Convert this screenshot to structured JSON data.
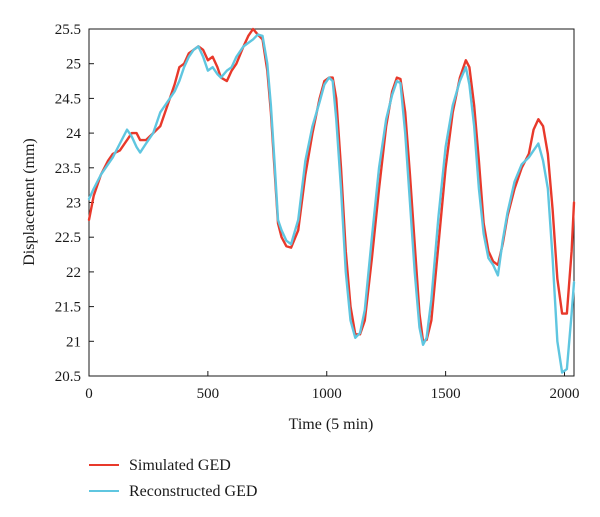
{
  "chart_data": {
    "type": "line",
    "xlabel": "Time (5 min)",
    "ylabel": "Displacement (mm)",
    "xlim": [
      0,
      2040
    ],
    "ylim": [
      20.5,
      25.5
    ],
    "x_ticks": [
      0,
      500,
      1000,
      1500,
      2000
    ],
    "y_ticks": [
      20.5,
      21,
      21.5,
      22,
      22.5,
      23,
      23.5,
      24,
      24.5,
      25,
      25.5
    ],
    "x_tick_labels": [
      "0",
      "500",
      "1000",
      "1500",
      "2000"
    ],
    "y_tick_labels": [
      "20.5",
      "21",
      "21.5",
      "22",
      "22.5",
      "23",
      "23.5",
      "24",
      "24.5",
      "25",
      "25.5"
    ],
    "grid": false,
    "legend_position": "bottom-left, below plot",
    "series": [
      {
        "name": "Simulated GED",
        "color": "#e8392b",
        "points": [
          [
            0,
            22.75
          ],
          [
            20,
            23.1
          ],
          [
            50,
            23.4
          ],
          [
            80,
            23.6
          ],
          [
            100,
            23.7
          ],
          [
            130,
            23.75
          ],
          [
            160,
            23.9
          ],
          [
            180,
            24.0
          ],
          [
            200,
            24.0
          ],
          [
            215,
            23.9
          ],
          [
            240,
            23.9
          ],
          [
            270,
            24.0
          ],
          [
            300,
            24.1
          ],
          [
            330,
            24.4
          ],
          [
            360,
            24.7
          ],
          [
            380,
            24.95
          ],
          [
            400,
            25.0
          ],
          [
            420,
            25.15
          ],
          [
            440,
            25.2
          ],
          [
            460,
            25.25
          ],
          [
            480,
            25.2
          ],
          [
            500,
            25.05
          ],
          [
            520,
            25.1
          ],
          [
            540,
            24.95
          ],
          [
            555,
            24.8
          ],
          [
            580,
            24.75
          ],
          [
            600,
            24.9
          ],
          [
            620,
            25.0
          ],
          [
            650,
            25.25
          ],
          [
            670,
            25.4
          ],
          [
            690,
            25.5
          ],
          [
            710,
            25.42
          ],
          [
            730,
            25.35
          ],
          [
            750,
            24.9
          ],
          [
            765,
            24.3
          ],
          [
            780,
            23.5
          ],
          [
            795,
            22.7
          ],
          [
            810,
            22.5
          ],
          [
            830,
            22.37
          ],
          [
            850,
            22.35
          ],
          [
            880,
            22.6
          ],
          [
            910,
            23.4
          ],
          [
            940,
            24.0
          ],
          [
            970,
            24.5
          ],
          [
            990,
            24.75
          ],
          [
            1010,
            24.8
          ],
          [
            1025,
            24.8
          ],
          [
            1040,
            24.5
          ],
          [
            1060,
            23.5
          ],
          [
            1080,
            22.3
          ],
          [
            1100,
            21.5
          ],
          [
            1120,
            21.1
          ],
          [
            1140,
            21.1
          ],
          [
            1160,
            21.3
          ],
          [
            1190,
            22.2
          ],
          [
            1220,
            23.2
          ],
          [
            1250,
            24.1
          ],
          [
            1275,
            24.6
          ],
          [
            1295,
            24.8
          ],
          [
            1310,
            24.78
          ],
          [
            1330,
            24.3
          ],
          [
            1350,
            23.4
          ],
          [
            1370,
            22.4
          ],
          [
            1390,
            21.4
          ],
          [
            1405,
            21.0
          ],
          [
            1420,
            21.02
          ],
          [
            1440,
            21.3
          ],
          [
            1470,
            22.4
          ],
          [
            1500,
            23.5
          ],
          [
            1530,
            24.3
          ],
          [
            1560,
            24.8
          ],
          [
            1585,
            25.05
          ],
          [
            1600,
            24.95
          ],
          [
            1620,
            24.4
          ],
          [
            1640,
            23.6
          ],
          [
            1660,
            22.7
          ],
          [
            1680,
            22.3
          ],
          [
            1700,
            22.15
          ],
          [
            1720,
            22.1
          ],
          [
            1740,
            22.4
          ],
          [
            1760,
            22.8
          ],
          [
            1790,
            23.2
          ],
          [
            1820,
            23.5
          ],
          [
            1850,
            23.7
          ],
          [
            1870,
            24.05
          ],
          [
            1890,
            24.2
          ],
          [
            1910,
            24.1
          ],
          [
            1930,
            23.7
          ],
          [
            1950,
            22.9
          ],
          [
            1970,
            21.9
          ],
          [
            1990,
            21.4
          ],
          [
            2010,
            21.4
          ],
          [
            2030,
            22.3
          ],
          [
            2040,
            23.0
          ]
        ]
      },
      {
        "name": "Reconstructed GED",
        "color": "#5fc6e0",
        "points": [
          [
            0,
            23.05
          ],
          [
            20,
            23.2
          ],
          [
            50,
            23.4
          ],
          [
            80,
            23.55
          ],
          [
            100,
            23.65
          ],
          [
            130,
            23.85
          ],
          [
            160,
            24.05
          ],
          [
            180,
            23.95
          ],
          [
            200,
            23.8
          ],
          [
            215,
            23.72
          ],
          [
            240,
            23.85
          ],
          [
            270,
            24.0
          ],
          [
            300,
            24.3
          ],
          [
            330,
            24.45
          ],
          [
            360,
            24.6
          ],
          [
            380,
            24.75
          ],
          [
            400,
            24.95
          ],
          [
            420,
            25.1
          ],
          [
            440,
            25.2
          ],
          [
            460,
            25.25
          ],
          [
            480,
            25.1
          ],
          [
            500,
            24.9
          ],
          [
            520,
            24.95
          ],
          [
            540,
            24.85
          ],
          [
            555,
            24.8
          ],
          [
            580,
            24.9
          ],
          [
            600,
            24.95
          ],
          [
            620,
            25.1
          ],
          [
            650,
            25.25
          ],
          [
            670,
            25.3
          ],
          [
            690,
            25.35
          ],
          [
            710,
            25.42
          ],
          [
            730,
            25.4
          ],
          [
            750,
            25.0
          ],
          [
            765,
            24.4
          ],
          [
            780,
            23.6
          ],
          [
            795,
            22.75
          ],
          [
            810,
            22.6
          ],
          [
            830,
            22.45
          ],
          [
            850,
            22.4
          ],
          [
            880,
            22.75
          ],
          [
            910,
            23.6
          ],
          [
            940,
            24.1
          ],
          [
            970,
            24.45
          ],
          [
            990,
            24.7
          ],
          [
            1010,
            24.8
          ],
          [
            1025,
            24.75
          ],
          [
            1040,
            24.2
          ],
          [
            1060,
            23.2
          ],
          [
            1080,
            22.0
          ],
          [
            1100,
            21.3
          ],
          [
            1120,
            21.05
          ],
          [
            1140,
            21.12
          ],
          [
            1160,
            21.45
          ],
          [
            1190,
            22.5
          ],
          [
            1220,
            23.5
          ],
          [
            1250,
            24.2
          ],
          [
            1275,
            24.55
          ],
          [
            1295,
            24.75
          ],
          [
            1310,
            24.72
          ],
          [
            1330,
            24.0
          ],
          [
            1350,
            23.0
          ],
          [
            1370,
            22.0
          ],
          [
            1390,
            21.2
          ],
          [
            1405,
            20.95
          ],
          [
            1420,
            21.05
          ],
          [
            1440,
            21.6
          ],
          [
            1470,
            22.8
          ],
          [
            1500,
            23.8
          ],
          [
            1530,
            24.4
          ],
          [
            1560,
            24.75
          ],
          [
            1585,
            24.95
          ],
          [
            1600,
            24.7
          ],
          [
            1620,
            24.1
          ],
          [
            1640,
            23.2
          ],
          [
            1660,
            22.55
          ],
          [
            1680,
            22.2
          ],
          [
            1700,
            22.1
          ],
          [
            1720,
            21.95
          ],
          [
            1740,
            22.45
          ],
          [
            1760,
            22.85
          ],
          [
            1790,
            23.3
          ],
          [
            1820,
            23.55
          ],
          [
            1850,
            23.65
          ],
          [
            1870,
            23.75
          ],
          [
            1890,
            23.85
          ],
          [
            1910,
            23.6
          ],
          [
            1930,
            23.2
          ],
          [
            1950,
            22.2
          ],
          [
            1970,
            21.0
          ],
          [
            1990,
            20.55
          ],
          [
            2010,
            20.6
          ],
          [
            2030,
            21.4
          ],
          [
            2040,
            21.85
          ]
        ]
      }
    ]
  }
}
